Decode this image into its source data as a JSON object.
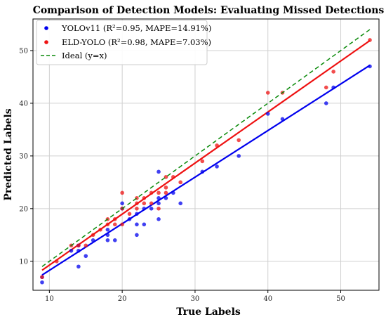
{
  "chart_data": {
    "type": "scatter",
    "title": "Comparison of Detection Models: Evaluating Missed Detections",
    "xlabel": "True Labels",
    "ylabel": "Predicted Labels",
    "xlim": [
      7.75,
      55.25
    ],
    "ylim": [
      4.5,
      56.0
    ],
    "xticks": [
      10,
      20,
      30,
      40,
      50
    ],
    "yticks": [
      10,
      20,
      30,
      40,
      50
    ],
    "grid": true,
    "legend": "top-left",
    "series": [
      {
        "name": "YOLOv11 (R²=0.95, MAPE=14.91%)",
        "color": "#0000ee",
        "points": [
          [
            9,
            6
          ],
          [
            9,
            7
          ],
          [
            13,
            12
          ],
          [
            14,
            9
          ],
          [
            14,
            12
          ],
          [
            14,
            13
          ],
          [
            15,
            11
          ],
          [
            16,
            14
          ],
          [
            18,
            14
          ],
          [
            18,
            15
          ],
          [
            18,
            16
          ],
          [
            19,
            14
          ],
          [
            20,
            20
          ],
          [
            20,
            21
          ],
          [
            21,
            18
          ],
          [
            22,
            15
          ],
          [
            22,
            17
          ],
          [
            22,
            19
          ],
          [
            23,
            17
          ],
          [
            23,
            20
          ],
          [
            24,
            20
          ],
          [
            25,
            18
          ],
          [
            25,
            21
          ],
          [
            25,
            22
          ],
          [
            25,
            27
          ],
          [
            26,
            22
          ],
          [
            27,
            23
          ],
          [
            28,
            21
          ],
          [
            31,
            27
          ],
          [
            33,
            28
          ],
          [
            36,
            30
          ],
          [
            40,
            38
          ],
          [
            42,
            37
          ],
          [
            48,
            40
          ],
          [
            49,
            43
          ],
          [
            54,
            47
          ]
        ],
        "fit_line": [
          [
            9,
            7.4
          ],
          [
            54,
            47.2
          ]
        ]
      },
      {
        "name": "ELD-YOLO (R²=0.98, MAPE=7.03%)",
        "color": "#ee1111",
        "points": [
          [
            9,
            7
          ],
          [
            11,
            10
          ],
          [
            13,
            13
          ],
          [
            14,
            13
          ],
          [
            15,
            13
          ],
          [
            16,
            15
          ],
          [
            17,
            16
          ],
          [
            18,
            17
          ],
          [
            18,
            18
          ],
          [
            19,
            17
          ],
          [
            19,
            18
          ],
          [
            20,
            17
          ],
          [
            20,
            20
          ],
          [
            20,
            23
          ],
          [
            21,
            19
          ],
          [
            22,
            20
          ],
          [
            22,
            21
          ],
          [
            22,
            22
          ],
          [
            23,
            21
          ],
          [
            23,
            22
          ],
          [
            24,
            21
          ],
          [
            24,
            23
          ],
          [
            25,
            20
          ],
          [
            25,
            23
          ],
          [
            26,
            23
          ],
          [
            26,
            24
          ],
          [
            26,
            26
          ],
          [
            27,
            26
          ],
          [
            28,
            25
          ],
          [
            31,
            29
          ],
          [
            33,
            32
          ],
          [
            36,
            33
          ],
          [
            40,
            42
          ],
          [
            42,
            42
          ],
          [
            48,
            43
          ],
          [
            49,
            46
          ],
          [
            54,
            52
          ]
        ],
        "fit_line": [
          [
            9,
            8.3
          ],
          [
            54,
            51.9
          ]
        ]
      },
      {
        "name": "Ideal (y=x)",
        "color": "#0a8a0a",
        "style": "dashed",
        "line": [
          [
            9,
            9
          ],
          [
            54,
            54
          ]
        ]
      }
    ]
  }
}
